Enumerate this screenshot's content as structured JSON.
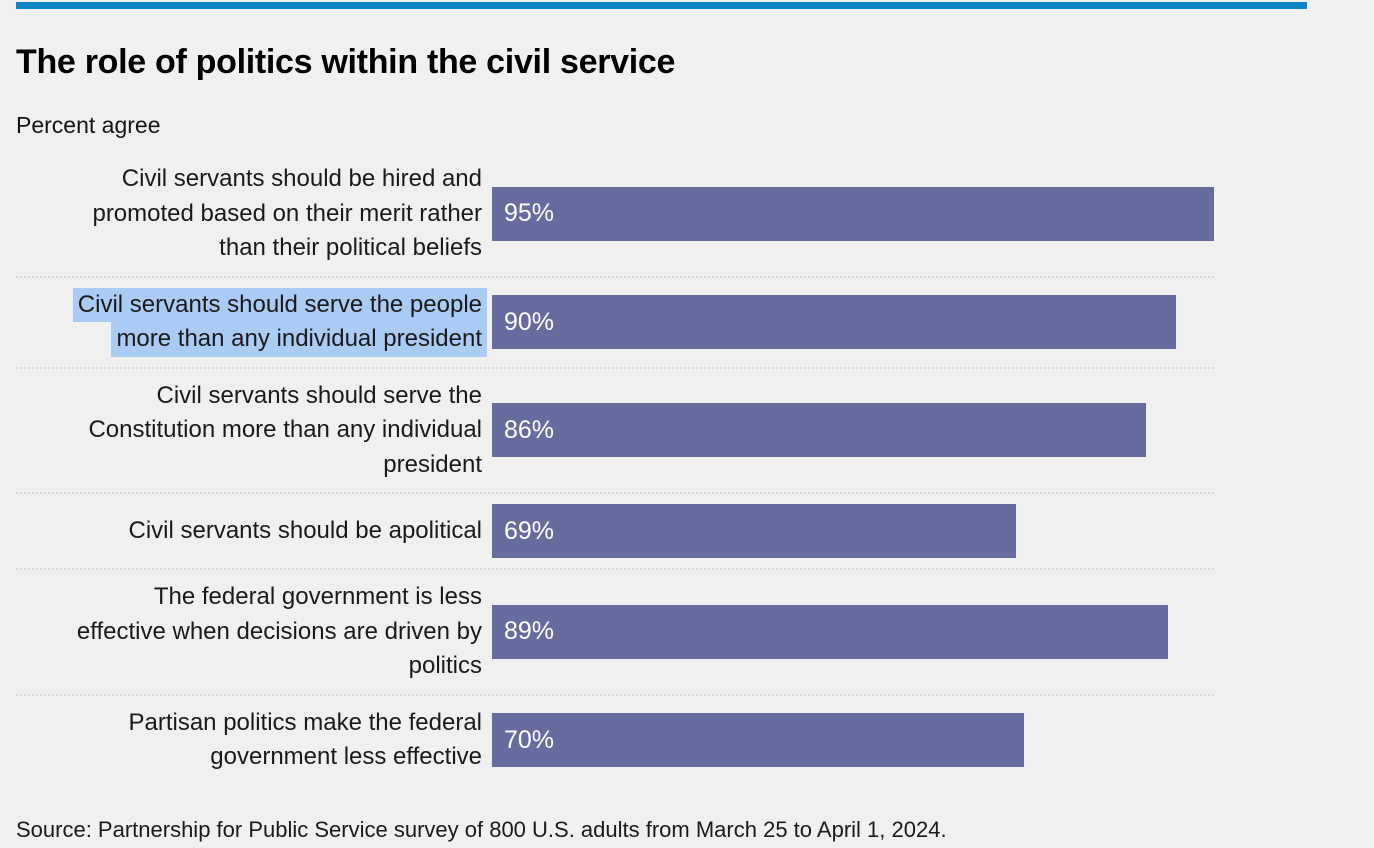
{
  "page": {
    "title": "The role of politics within the civil service",
    "subtitle": "Percent agree",
    "source": "Source: Partnership for Public Service survey of 800 U.S. adults from March 25 to April 1, 2024."
  },
  "colors": {
    "top_rule": "#0d87cc",
    "background": "#f0f0f1",
    "bar": "#676c9e",
    "bar_value_text": "#ffffff",
    "selection_highlight": "#aacbf4",
    "separator": "#d9d9d9",
    "label_text": "#1a1a1a"
  },
  "chart_data": {
    "type": "bar",
    "orientation": "horizontal",
    "title": "The role of politics within the civil service",
    "subtitle": "Percent agree",
    "unit": "%",
    "xlim": [
      0,
      95
    ],
    "grid": false,
    "legend": false,
    "value_labels_position": "inside-left",
    "categories": [
      "Civil servants should be hired and promoted based on their merit rather than their political beliefs",
      "Civil servants should serve the people more than any individual president",
      "Civil servants should serve the Constitution more than any individual president",
      "Civil servants should be apolitical",
      "The federal government is less effective when decisions are driven by politics",
      "Partisan politics make the federal government less effective"
    ],
    "values": [
      95,
      90,
      86,
      69,
      89,
      70
    ]
  },
  "rows": [
    {
      "label": "Civil servants should be hired and promoted based on their merit rather than their political beliefs",
      "label_lines": [
        "Civil servants should be hired and",
        "promoted based on their merit rather",
        "than their political beliefs"
      ],
      "value": 95,
      "value_label": "95%",
      "selected": false
    },
    {
      "label": "Civil servants should serve the people more than any individual president",
      "label_lines": [
        "Civil servants should serve the people",
        "more than any individual president"
      ],
      "value": 90,
      "value_label": "90%",
      "selected": true
    },
    {
      "label": "Civil servants should serve the Constitution more than any individual president",
      "label_lines": [
        "Civil servants should serve the",
        "Constitution more than any individual",
        "president"
      ],
      "value": 86,
      "value_label": "86%",
      "selected": false
    },
    {
      "label": "Civil servants should be apolitical",
      "label_lines": [
        "Civil servants should be apolitical"
      ],
      "value": 69,
      "value_label": "69%",
      "selected": false
    },
    {
      "label": "The federal government is less effective when decisions are driven by politics",
      "label_lines": [
        "The federal government is less",
        "effective when decisions are driven by",
        "politics"
      ],
      "value": 89,
      "value_label": "89%",
      "selected": false
    },
    {
      "label": "Partisan politics make the federal government less effective",
      "label_lines": [
        "Partisan politics make the federal",
        "government less effective"
      ],
      "value": 70,
      "value_label": "70%",
      "selected": false
    }
  ]
}
